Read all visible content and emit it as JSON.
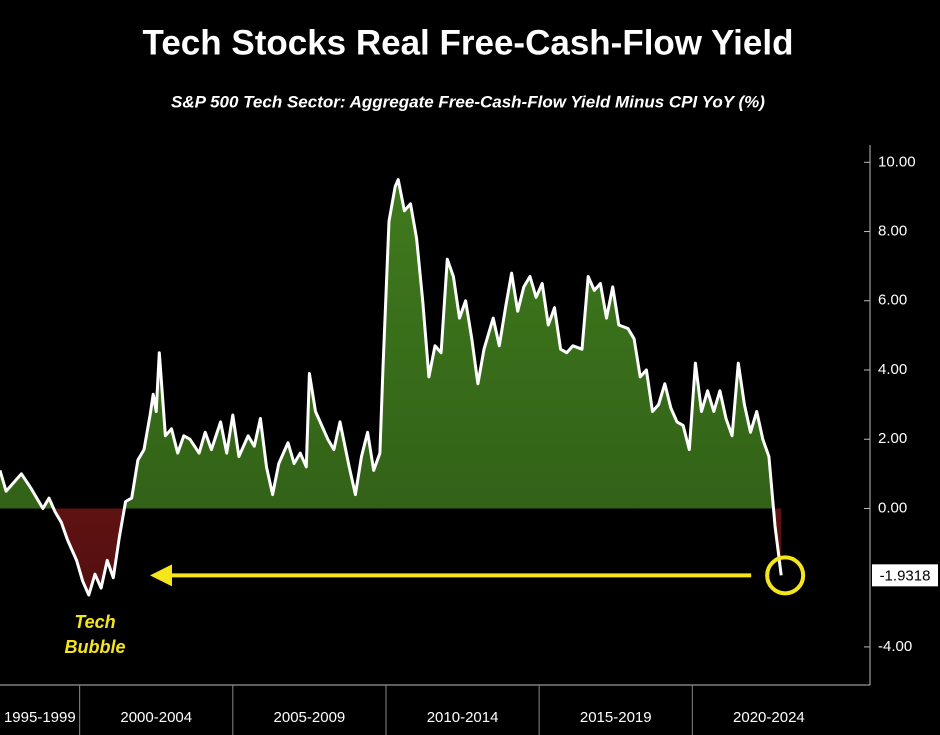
{
  "chart_data": {
    "type": "area",
    "title": "Tech Stocks Real Free-Cash-Flow Yield",
    "subtitle": "S&P 500 Tech Sector: Aggregate Free-Cash-Flow Yield Minus CPI YoY (%)",
    "x": [
      1997.4,
      1997.6,
      1997.9,
      1998.1,
      1998.4,
      1998.6,
      1998.8,
      1999.0,
      1999.2,
      1999.4,
      1999.6,
      1999.9,
      2000.1,
      2000.3,
      2000.5,
      2000.7,
      2000.9,
      2001.1,
      2001.3,
      2001.5,
      2001.7,
      2001.9,
      2002.1,
      2002.3,
      2002.4,
      2002.5,
      2002.6,
      2002.8,
      2003.0,
      2003.2,
      2003.4,
      2003.6,
      2003.9,
      2004.1,
      2004.3,
      2004.6,
      2004.8,
      2005.0,
      2005.2,
      2005.5,
      2005.7,
      2005.9,
      2006.1,
      2006.3,
      2006.5,
      2006.8,
      2007.0,
      2007.2,
      2007.4,
      2007.5,
      2007.7,
      2007.9,
      2008.1,
      2008.3,
      2008.5,
      2008.8,
      2009.0,
      2009.2,
      2009.4,
      2009.6,
      2009.8,
      2009.9,
      2010.1,
      2010.3,
      2010.4,
      2010.6,
      2010.8,
      2011.0,
      2011.2,
      2011.4,
      2011.6,
      2011.8,
      2012.0,
      2012.2,
      2012.4,
      2012.6,
      2012.8,
      2013.0,
      2013.2,
      2013.5,
      2013.7,
      2013.9,
      2014.1,
      2014.3,
      2014.5,
      2014.7,
      2014.9,
      2015.1,
      2015.3,
      2015.5,
      2015.7,
      2015.9,
      2016.1,
      2016.4,
      2016.6,
      2016.8,
      2017.0,
      2017.2,
      2017.4,
      2017.6,
      2017.9,
      2018.1,
      2018.3,
      2018.5,
      2018.7,
      2018.9,
      2019.1,
      2019.3,
      2019.5,
      2019.7,
      2019.9,
      2020.1,
      2020.3,
      2020.5,
      2020.7,
      2020.9,
      2021.1,
      2021.3,
      2021.5,
      2021.7,
      2021.9,
      2022.1,
      2022.3,
      2022.5,
      2022.7,
      2022.9
    ],
    "values": [
      1.1,
      0.5,
      0.8,
      1.0,
      0.6,
      0.3,
      0.0,
      0.3,
      -0.1,
      -0.4,
      -0.9,
      -1.5,
      -2.1,
      -2.5,
      -1.9,
      -2.3,
      -1.5,
      -2.0,
      -0.8,
      0.2,
      0.3,
      1.4,
      1.7,
      2.7,
      3.3,
      2.8,
      4.5,
      2.1,
      2.3,
      1.6,
      2.1,
      2.0,
      1.6,
      2.2,
      1.7,
      2.5,
      1.6,
      2.7,
      1.5,
      2.1,
      1.8,
      2.6,
      1.2,
      0.4,
      1.3,
      1.9,
      1.3,
      1.6,
      1.2,
      3.9,
      2.8,
      2.4,
      2.0,
      1.7,
      2.5,
      1.2,
      0.4,
      1.5,
      2.2,
      1.1,
      1.6,
      4.0,
      8.3,
      9.3,
      9.5,
      8.6,
      8.8,
      7.8,
      6.0,
      3.8,
      4.7,
      4.5,
      7.2,
      6.7,
      5.5,
      6.0,
      4.9,
      3.6,
      4.6,
      5.5,
      4.7,
      5.8,
      6.8,
      5.7,
      6.4,
      6.7,
      6.1,
      6.5,
      5.3,
      5.8,
      4.6,
      4.5,
      4.7,
      4.6,
      6.7,
      6.3,
      6.5,
      5.5,
      6.4,
      5.3,
      5.2,
      4.9,
      3.8,
      4.0,
      2.8,
      3.0,
      3.6,
      2.9,
      2.5,
      2.4,
      1.7,
      4.2,
      2.8,
      3.4,
      2.8,
      3.4,
      2.6,
      2.1,
      4.2,
      3.0,
      2.2,
      2.8,
      2.0,
      1.5,
      -0.5,
      -1.9318
    ],
    "last_value_label": "-1.9318",
    "positive_color": "#3f7a1d",
    "negative_color": "#8b1a1a",
    "line_color": "#ffffff",
    "xlim": [
      1997.4,
      2025.8
    ],
    "ylim": [
      -5.1,
      10.5
    ],
    "yticks": [
      {
        "value": 10,
        "label": "10.00"
      },
      {
        "value": 8,
        "label": "8.00"
      },
      {
        "value": 6,
        "label": "6.00"
      },
      {
        "value": 4,
        "label": "4.00"
      },
      {
        "value": 2,
        "label": "2.00"
      },
      {
        "value": 0,
        "label": "0.00"
      },
      {
        "value": -4,
        "label": "-4.00"
      }
    ],
    "periods": [
      {
        "label": "1995-1999",
        "start": 1995,
        "end": 2000
      },
      {
        "label": "2000-2004",
        "start": 2000,
        "end": 2005
      },
      {
        "label": "2005-2009",
        "start": 2005,
        "end": 2010
      },
      {
        "label": "2010-2014",
        "start": 2010,
        "end": 2015
      },
      {
        "label": "2015-2019",
        "start": 2015,
        "end": 2020
      },
      {
        "label": "2020-2024",
        "start": 2020,
        "end": 2025
      }
    ],
    "annotation": [
      "Tech",
      "Bubble"
    ],
    "annotation_color": "#f5e51b"
  }
}
